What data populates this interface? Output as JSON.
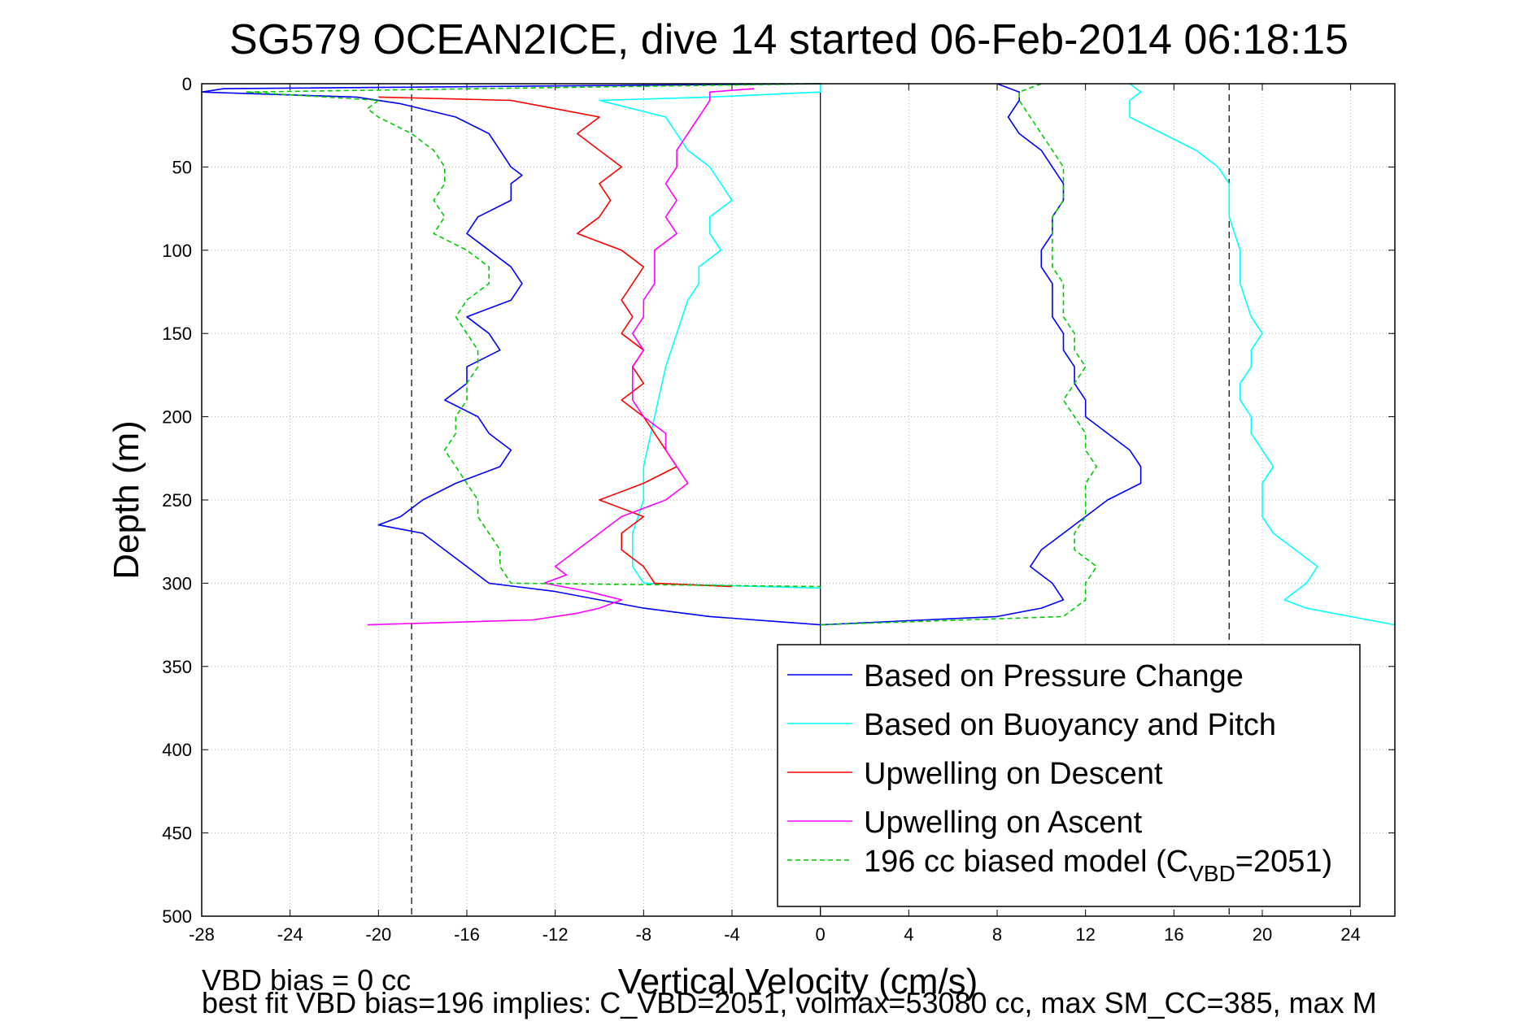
{
  "chart_data": {
    "type": "line",
    "title": "SG579 OCEAN2ICE, dive 14 started 06-Feb-2014 06:18:15",
    "xlabel": "Vertical Velocity (cm/s)",
    "ylabel": "Depth (m)",
    "xlim": [
      -28,
      26
    ],
    "ylim": [
      0,
      500
    ],
    "y_reversed": true,
    "grid": true,
    "x_ticks": [
      "-28",
      "-24",
      "-20",
      "-16",
      "-12",
      "-8",
      "-4",
      "0",
      "4",
      "8",
      "12",
      "16",
      "20",
      "24"
    ],
    "y_ticks": [
      "0",
      "50",
      "100",
      "150",
      "200",
      "250",
      "300",
      "350",
      "400",
      "450",
      "500"
    ],
    "reference_lines": [
      {
        "x": -18.5,
        "style": "dashed",
        "color": "#000000"
      },
      {
        "x": 18.5,
        "style": "dashed",
        "color": "#000000"
      },
      {
        "x": 0,
        "style": "solid",
        "color": "#000000"
      }
    ],
    "legend_position": "lower-right",
    "legend": [
      {
        "label": "Based on Pressure Change",
        "color": "#0000ff",
        "dash": "solid"
      },
      {
        "label": "Based on Buoyancy and Pitch",
        "color": "#00ffff",
        "dash": "solid"
      },
      {
        "label": "Upwelling on Descent",
        "color": "#ff0000",
        "dash": "solid"
      },
      {
        "label": "Upwelling on Ascent",
        "color": "#ff00ff",
        "dash": "solid"
      },
      {
        "label_prefix": "196 cc biased model (C",
        "label_sub": "VBD",
        "label_suffix": "=2051)",
        "color": "#00cc00",
        "dash": "dashed"
      }
    ],
    "series": [
      {
        "key": "pressure_descent",
        "color": "#0000ff",
        "dash": "solid",
        "depth": [
          0,
          3,
          5,
          8,
          12,
          20,
          30,
          40,
          50,
          55,
          60,
          70,
          80,
          90,
          100,
          110,
          120,
          130,
          140,
          150,
          160,
          170,
          180,
          190,
          200,
          210,
          220,
          230,
          240,
          250,
          260,
          265,
          270,
          280,
          290,
          300,
          305,
          310,
          315,
          320,
          325
        ],
        "x": [
          0,
          -27,
          -28,
          -21,
          -19,
          -16.5,
          -15,
          -14.5,
          -14,
          -13.5,
          -14,
          -14,
          -15.5,
          -16,
          -15,
          -14,
          -13.5,
          -14,
          -16,
          -15,
          -14.5,
          -16,
          -16,
          -17,
          -15.5,
          -15,
          -14,
          -14.5,
          -16.5,
          -18,
          -19,
          -20,
          -18,
          -17,
          -16,
          -15,
          -12,
          -10,
          -8,
          -5,
          0
        ]
      },
      {
        "key": "pressure_ascent",
        "color": "#0000ff",
        "dash": "solid",
        "depth": [
          325,
          320,
          315,
          310,
          300,
          290,
          280,
          270,
          260,
          250,
          240,
          230,
          220,
          210,
          200,
          190,
          180,
          170,
          160,
          150,
          140,
          130,
          120,
          110,
          100,
          90,
          80,
          70,
          60,
          50,
          40,
          30,
          20,
          10,
          5,
          0
        ],
        "x": [
          0,
          8,
          10,
          11,
          10.5,
          9.5,
          10,
          11,
          12,
          13,
          14.5,
          14.5,
          14,
          13,
          12,
          12,
          11.5,
          11.5,
          11,
          11,
          10.5,
          10.5,
          10.5,
          10,
          10,
          10.5,
          10.5,
          11,
          11,
          10.5,
          10,
          9,
          8.5,
          9,
          9,
          8
        ]
      },
      {
        "key": "buoyancy_descent",
        "color": "#00ffff",
        "dash": "solid",
        "depth": [
          0,
          5,
          8,
          10,
          20,
          30,
          40,
          50,
          60,
          70,
          80,
          90,
          100,
          110,
          120,
          130,
          150,
          170,
          200,
          230,
          250,
          270,
          290,
          300,
          303
        ],
        "x": [
          0,
          0,
          -5,
          -10,
          -7,
          -6.5,
          -6,
          -5,
          -4.5,
          -4,
          -5,
          -5,
          -4.5,
          -5.5,
          -5.5,
          -6,
          -6.5,
          -7,
          -7.5,
          -8,
          -8,
          -8.5,
          -8.5,
          -8,
          0
        ]
      },
      {
        "key": "buoyancy_ascent",
        "color": "#00ffff",
        "dash": "solid",
        "depth": [
          325,
          320,
          315,
          310,
          300,
          290,
          280,
          270,
          260,
          250,
          240,
          230,
          220,
          210,
          200,
          190,
          180,
          170,
          160,
          150,
          140,
          120,
          100,
          80,
          60,
          50,
          40,
          30,
          20,
          10,
          5,
          0
        ],
        "x": [
          26,
          24,
          22,
          21,
          22,
          22.5,
          21.5,
          20.5,
          20,
          20,
          20,
          20.5,
          20,
          19.5,
          19.5,
          19,
          19,
          19.5,
          19.5,
          20,
          19.5,
          19,
          19,
          18.5,
          18.5,
          18,
          17,
          15.5,
          14,
          14,
          14.5,
          14
        ]
      },
      {
        "key": "upwelling_descent",
        "color": "#ff0000",
        "dash": "solid",
        "depth": [
          8,
          10,
          15,
          20,
          30,
          40,
          50,
          60,
          70,
          80,
          90,
          100,
          110,
          120,
          130,
          140,
          150,
          160,
          170,
          180,
          190,
          200,
          210,
          220,
          230,
          240,
          250,
          260,
          270,
          280,
          290,
          300,
          302
        ],
        "x": [
          -20,
          -14,
          -12,
          -10,
          -11,
          -10,
          -9,
          -10,
          -9.5,
          -10,
          -11,
          -9,
          -8,
          -8.5,
          -9,
          -8.5,
          -9,
          -8,
          -8.5,
          -8,
          -9,
          -8,
          -7.5,
          -7,
          -6.5,
          -8,
          -10,
          -8,
          -9,
          -9,
          -8,
          -7.5,
          -4
        ]
      },
      {
        "key": "upwelling_ascent",
        "color": "#ff00ff",
        "dash": "solid",
        "depth": [
          325,
          322,
          318,
          315,
          310,
          305,
          300,
          295,
          290,
          280,
          270,
          260,
          250,
          240,
          230,
          220,
          210,
          200,
          190,
          180,
          170,
          160,
          150,
          140,
          130,
          120,
          110,
          100,
          90,
          80,
          70,
          60,
          50,
          40,
          30,
          20,
          10,
          5,
          3
        ],
        "x": [
          -20.5,
          -13,
          -11,
          -10,
          -9,
          -10.5,
          -12.5,
          -11.5,
          -12,
          -11,
          -10,
          -9,
          -7,
          -6,
          -6.5,
          -7,
          -7,
          -8,
          -8.5,
          -8.5,
          -8.5,
          -8,
          -8.5,
          -8,
          -8,
          -7.5,
          -7.5,
          -7.5,
          -6.5,
          -7,
          -6.5,
          -7,
          -6.5,
          -6.5,
          -6,
          -5.5,
          -5,
          -5,
          -3
        ]
      },
      {
        "key": "model_descent",
        "color": "#00cc00",
        "dash": "dashed",
        "depth": [
          0,
          5,
          10,
          15,
          20,
          30,
          40,
          50,
          60,
          70,
          80,
          90,
          100,
          110,
          120,
          130,
          140,
          150,
          160,
          170,
          180,
          190,
          200,
          210,
          220,
          230,
          240,
          250,
          260,
          270,
          280,
          290,
          300,
          302
        ],
        "x": [
          0,
          -26,
          -20,
          -20.5,
          -20,
          -18.5,
          -17.5,
          -17,
          -17,
          -17.5,
          -17,
          -17.5,
          -16,
          -15,
          -15,
          -16,
          -16.5,
          -16,
          -15.5,
          -15.5,
          -16,
          -16,
          -16.5,
          -16.5,
          -17,
          -16.5,
          -16,
          -15.5,
          -15.5,
          -15,
          -14.5,
          -14.5,
          -14,
          0
        ]
      },
      {
        "key": "model_ascent",
        "color": "#00cc00",
        "dash": "dashed",
        "depth": [
          325,
          320,
          310,
          300,
          290,
          280,
          270,
          260,
          250,
          240,
          230,
          220,
          210,
          200,
          190,
          180,
          170,
          160,
          150,
          140,
          130,
          120,
          110,
          100,
          90,
          80,
          70,
          60,
          50,
          40,
          30,
          20,
          10,
          5,
          0
        ],
        "x": [
          0,
          11,
          12,
          12,
          12.5,
          11.5,
          11.5,
          12,
          12,
          12,
          12.5,
          12,
          12,
          11.5,
          11,
          11.5,
          12,
          11.5,
          11.5,
          11,
          11,
          11,
          10.5,
          10.5,
          10.5,
          10.5,
          11,
          11,
          11,
          10.5,
          10,
          9.5,
          9,
          9,
          10
        ]
      }
    ],
    "annotations": [
      "VBD bias = 0 cc",
      "best fit VBD bias=196 implies: C_VBD=2051, volmax=53080 cc, max SM_CC=385, max M"
    ]
  }
}
